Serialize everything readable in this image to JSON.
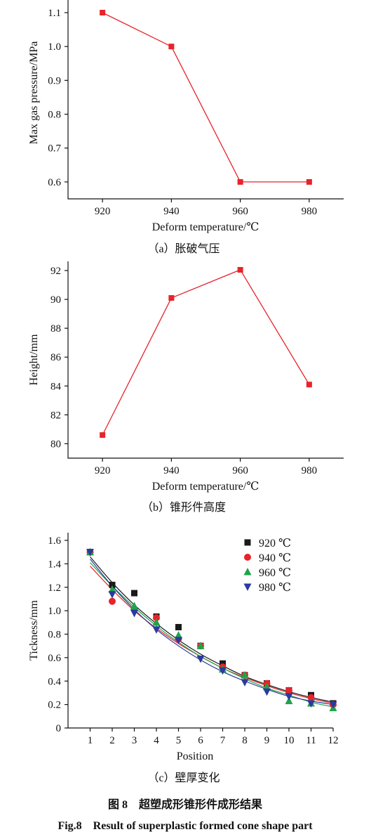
{
  "chart_data": [
    {
      "type": "line",
      "x": [
        920,
        940,
        960,
        980
      ],
      "series": [
        {
          "values": [
            1.1,
            1.0,
            0.6,
            0.6
          ]
        }
      ],
      "xlabel": "Deform temperature/℃",
      "ylabel": "Max gas pressure/MPa",
      "caption": "（a）胀破气压",
      "xlim": [
        910,
        990
      ],
      "ylim": [
        0.55,
        1.1
      ],
      "xticks": [
        "920",
        "940",
        "960",
        "980"
      ],
      "yticks": [
        "0.6",
        "0.7",
        "0.8",
        "0.9",
        "1.0",
        "1.1"
      ],
      "grid": false,
      "color": "#e8232a"
    },
    {
      "type": "line",
      "x": [
        920,
        940,
        960,
        980
      ],
      "series": [
        {
          "values": [
            80.6,
            90.1,
            92.05,
            84.1
          ]
        }
      ],
      "xlabel": "Deform temperature/℃",
      "ylabel": "Height/mm",
      "caption": "（b）锥形件高度",
      "xlim": [
        910,
        990
      ],
      "ylim": [
        79,
        92
      ],
      "xticks": [
        "920",
        "940",
        "960",
        "980"
      ],
      "yticks": [
        "80",
        "82",
        "84",
        "86",
        "88",
        "90",
        "92"
      ],
      "grid": false,
      "color": "#e8232a"
    },
    {
      "type": "scatter",
      "x": [
        1,
        2,
        3,
        4,
        5,
        6,
        7,
        8,
        9,
        10,
        11,
        12
      ],
      "series": [
        {
          "name": "920 ℃",
          "marker": "square",
          "color": "#1a1a1a",
          "values": [
            1.5,
            1.22,
            1.15,
            0.95,
            0.86,
            0.7,
            0.55,
            0.45,
            0.38,
            0.32,
            0.28,
            0.21
          ],
          "fit": [
            1.46,
            1.24,
            1.05,
            0.89,
            0.75,
            0.63,
            0.53,
            0.44,
            0.37,
            0.31,
            0.26,
            0.22
          ]
        },
        {
          "name": "940 ℃",
          "marker": "circle",
          "color": "#e8232a",
          "values": [
            1.5,
            1.08,
            1.01,
            0.94,
            0.76,
            0.7,
            0.52,
            0.45,
            0.38,
            0.32,
            0.26,
            0.2
          ],
          "fit": [
            1.38,
            1.18,
            1.0,
            0.85,
            0.72,
            0.61,
            0.51,
            0.43,
            0.36,
            0.3,
            0.25,
            0.21
          ]
        },
        {
          "name": "960 ℃",
          "marker": "triangle",
          "color": "#1ea448",
          "values": [
            1.5,
            1.18,
            1.04,
            0.9,
            0.79,
            0.7,
            0.5,
            0.45,
            0.35,
            0.23,
            0.21,
            0.17
          ],
          "fit": [
            1.41,
            1.21,
            1.03,
            0.87,
            0.73,
            0.61,
            0.51,
            0.42,
            0.34,
            0.28,
            0.22,
            0.18
          ]
        },
        {
          "name": "980 ℃",
          "marker": "triangle-down",
          "color": "#2b3a9c",
          "values": [
            1.5,
            1.14,
            0.98,
            0.84,
            0.75,
            0.59,
            0.49,
            0.39,
            0.31,
            0.27,
            0.21,
            0.2
          ],
          "fit": [
            1.44,
            1.21,
            1.01,
            0.84,
            0.7,
            0.58,
            0.48,
            0.4,
            0.33,
            0.27,
            0.23,
            0.2
          ]
        }
      ],
      "xlabel": "Position",
      "ylabel": "Tickness/mm",
      "caption": "（c）壁厚变化",
      "xlim": [
        0,
        12
      ],
      "ylim": [
        0,
        1.6
      ],
      "xticks": [
        "1",
        "2",
        "3",
        "4",
        "5",
        "6",
        "7",
        "8",
        "9",
        "10",
        "11",
        "12"
      ],
      "yticks": [
        "0",
        "0.2",
        "0.4",
        "0.6",
        "0.8",
        "1.0",
        "1.2",
        "1.4",
        "1.6"
      ],
      "grid": false,
      "legend": "top-right"
    }
  ],
  "figure_caption_cn": "图 8　超塑成形锥形件成形结果",
  "figure_caption_en": "Fig.8　Result of superplastic formed cone shape part"
}
